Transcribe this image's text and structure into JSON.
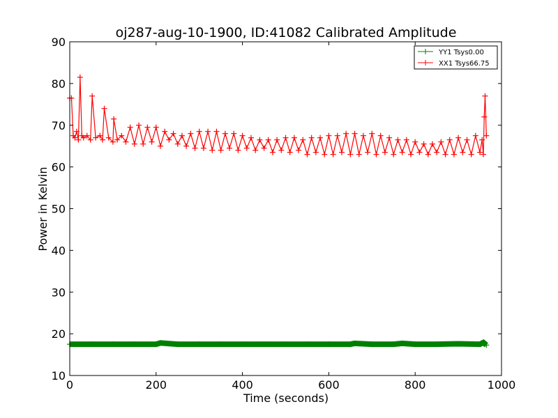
{
  "chart_data": {
    "type": "line",
    "title": "oj287-aug-10-1900, ID:41082 Calibrated Amplitude",
    "xlabel": "Time (seconds)",
    "ylabel": "Power in Kelvin",
    "xlim": [
      0,
      1000
    ],
    "ylim": [
      10,
      90
    ],
    "xticks": [
      0,
      200,
      400,
      600,
      800,
      1000
    ],
    "yticks": [
      10,
      20,
      30,
      40,
      50,
      60,
      70,
      80,
      90
    ],
    "grid": false,
    "legend_position": "top-right",
    "series": [
      {
        "name": "YY1 Tsys0.00",
        "color": "#008000",
        "marker": "+",
        "description_values": "flat near 17.5 K",
        "x": [
          0,
          50,
          100,
          150,
          200,
          210,
          250,
          300,
          350,
          400,
          450,
          500,
          550,
          600,
          650,
          660,
          700,
          750,
          770,
          800,
          850,
          900,
          950,
          958,
          965
        ],
        "y": [
          17.5,
          17.5,
          17.5,
          17.5,
          17.5,
          17.8,
          17.5,
          17.5,
          17.5,
          17.5,
          17.5,
          17.5,
          17.5,
          17.5,
          17.5,
          17.7,
          17.5,
          17.5,
          17.7,
          17.5,
          17.5,
          17.6,
          17.5,
          17.9,
          17.3
        ]
      },
      {
        "name": "XX1 Tsys66.75",
        "color": "#ff0000",
        "marker": "+",
        "x": [
          0,
          4,
          8,
          12,
          16,
          20,
          24,
          28,
          32,
          40,
          48,
          52,
          60,
          70,
          76,
          80,
          90,
          100,
          102,
          110,
          120,
          130,
          140,
          150,
          160,
          170,
          180,
          190,
          200,
          210,
          220,
          230,
          240,
          250,
          260,
          270,
          280,
          290,
          300,
          310,
          320,
          330,
          340,
          350,
          360,
          370,
          380,
          390,
          400,
          410,
          420,
          430,
          440,
          450,
          460,
          470,
          480,
          490,
          500,
          510,
          520,
          530,
          540,
          550,
          560,
          570,
          580,
          590,
          600,
          610,
          620,
          630,
          640,
          650,
          660,
          670,
          680,
          690,
          700,
          710,
          720,
          730,
          740,
          750,
          760,
          770,
          780,
          790,
          800,
          810,
          820,
          830,
          840,
          850,
          860,
          870,
          880,
          890,
          900,
          910,
          920,
          930,
          940,
          950,
          955,
          958,
          960,
          962,
          965
        ],
        "y": [
          76.5,
          76.5,
          67.5,
          67.0,
          68.5,
          66.5,
          81.5,
          67.5,
          67.0,
          67.5,
          66.5,
          77.0,
          67.0,
          67.5,
          66.5,
          74.0,
          67.0,
          66.0,
          71.5,
          66.5,
          67.5,
          66.0,
          69.5,
          65.5,
          70.0,
          65.5,
          69.5,
          66.0,
          69.5,
          65.0,
          68.5,
          66.5,
          68.0,
          65.5,
          67.5,
          65.0,
          68.0,
          64.5,
          68.5,
          64.5,
          68.5,
          64.0,
          68.5,
          64.0,
          68.0,
          64.5,
          68.0,
          64.0,
          67.5,
          64.5,
          67.0,
          64.0,
          66.5,
          64.5,
          66.5,
          63.5,
          66.5,
          64.0,
          67.0,
          63.5,
          67.0,
          64.0,
          66.5,
          63.0,
          67.0,
          63.5,
          67.0,
          63.0,
          67.5,
          63.0,
          67.5,
          63.5,
          68.0,
          63.0,
          68.0,
          63.0,
          67.5,
          63.5,
          68.0,
          63.0,
          67.5,
          63.5,
          67.0,
          63.0,
          66.5,
          63.5,
          66.5,
          63.0,
          66.0,
          63.5,
          65.5,
          63.0,
          65.5,
          63.5,
          66.0,
          63.0,
          66.5,
          63.0,
          67.0,
          63.5,
          66.5,
          63.0,
          67.5,
          63.5,
          66.5,
          63.0,
          72.0,
          77.0,
          67.5
        ]
      }
    ]
  }
}
